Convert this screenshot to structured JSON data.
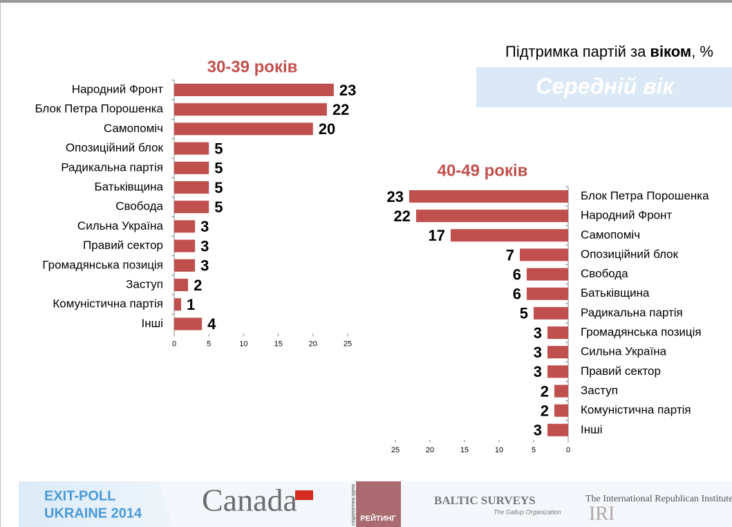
{
  "header": {
    "title_start": "Підтримка партій за ",
    "title_bold": "віком",
    "title_end": ", %",
    "banner": "Середній вік"
  },
  "chart_data": [
    {
      "type": "bar",
      "orientation": "horizontal",
      "title": "30-39 років",
      "categories": [
        "Народний Фронт",
        "Блок Петра Порошенка",
        "Самопоміч",
        "Опозиційний блок",
        "Радикальна партія",
        "Батьківщина",
        "Свобода",
        "Сильна Україна",
        "Правий сектор",
        "Громадянська позиція",
        "Заступ",
        "Комуністична партія",
        "Інші"
      ],
      "values": [
        23,
        22,
        20,
        5,
        5,
        5,
        5,
        3,
        3,
        3,
        2,
        1,
        4
      ],
      "color": "#c0504d",
      "xlim": [
        0,
        25
      ],
      "xticks": [
        0,
        5,
        10,
        15,
        20,
        25
      ]
    },
    {
      "type": "bar",
      "orientation": "horizontal",
      "title": "40-49 років",
      "categories": [
        "Блок Петра Порошенка",
        "Народний Фронт",
        "Самопоміч",
        "Опозиційний блок",
        "Свобода",
        "Батьківщина",
        "Радикальна партія",
        "Громадянська позиція",
        "Сильна Україна",
        "Правий сектор",
        "Заступ",
        "Комуністична партія",
        "Інші"
      ],
      "values": [
        23,
        22,
        17,
        7,
        6,
        6,
        5,
        3,
        3,
        3,
        2,
        2,
        3
      ],
      "color": "#c0504d",
      "xlim": [
        25,
        0
      ],
      "xticks": [
        25,
        20,
        15,
        10,
        5,
        0
      ]
    }
  ],
  "footer": {
    "exit_poll": "EXIT-POLL",
    "ukraine": "UKRAINE 2014",
    "canada": "Canada",
    "rating_group": "соціологічна група",
    "rating": "РЕЙТИНГ",
    "baltic": "BALTIC SURVEYS",
    "gallup": "The Gallup Organization",
    "iri_full": "The International Republican Institute",
    "iri": "IRI"
  }
}
